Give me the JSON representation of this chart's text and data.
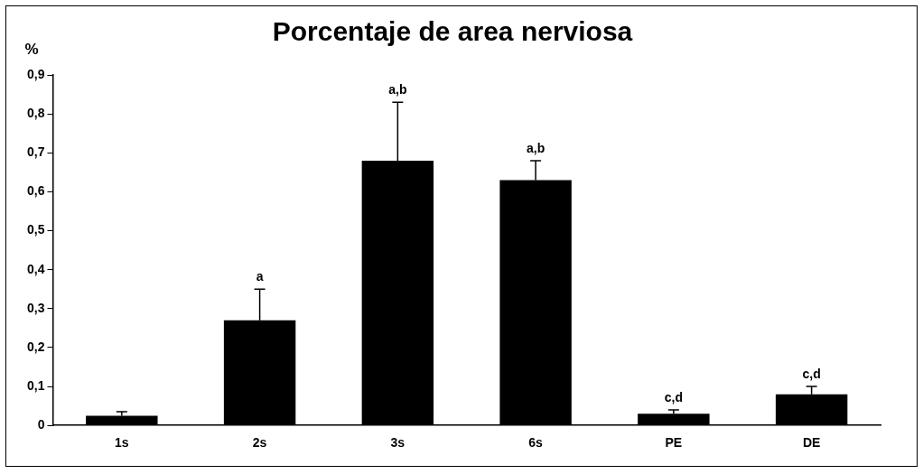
{
  "chart_data": {
    "type": "bar",
    "title": "Porcentaje de area nerviosa",
    "ylabel": "%",
    "categories": [
      "1s",
      "2s",
      "3s",
      "6s",
      "PE",
      "DE"
    ],
    "values": [
      0.025,
      0.27,
      0.68,
      0.63,
      0.03,
      0.08
    ],
    "errors": [
      [
        0.025,
        0.035
      ],
      [
        0.27,
        0.35
      ],
      [
        0.68,
        0.83
      ],
      [
        0.63,
        0.68
      ],
      [
        0.03,
        0.04
      ],
      [
        0.08,
        0.1
      ]
    ],
    "color": "#000000",
    "ylim": [
      0,
      0.9
    ],
    "yticks": [
      {
        "value": 0,
        "label": "0"
      },
      {
        "value": 0.1,
        "label": "0,1"
      },
      {
        "value": 0.2,
        "label": "0,2"
      },
      {
        "value": 0.3,
        "label": "0,3"
      },
      {
        "value": 0.4,
        "label": "0,4"
      },
      {
        "value": 0.5,
        "label": "0,5"
      },
      {
        "value": 0.6,
        "label": "0,6"
      },
      {
        "value": 0.7,
        "label": "0,7"
      },
      {
        "value": 0.8,
        "label": "0,8"
      },
      {
        "value": 0.9,
        "label": "0,9"
      }
    ],
    "annotations": [
      {
        "text": "a",
        "x": "2s",
        "y": 0.35
      },
      {
        "text": "a,b",
        "x": "3s",
        "y": 0.83
      },
      {
        "text": "a,b",
        "x": "6s",
        "y": 0.68
      },
      {
        "text": "c,d",
        "x": "PE",
        "y": 0.04
      },
      {
        "text": "c,d",
        "x": "DE",
        "y": 0.1
      }
    ],
    "grid": false,
    "legend": false
  }
}
